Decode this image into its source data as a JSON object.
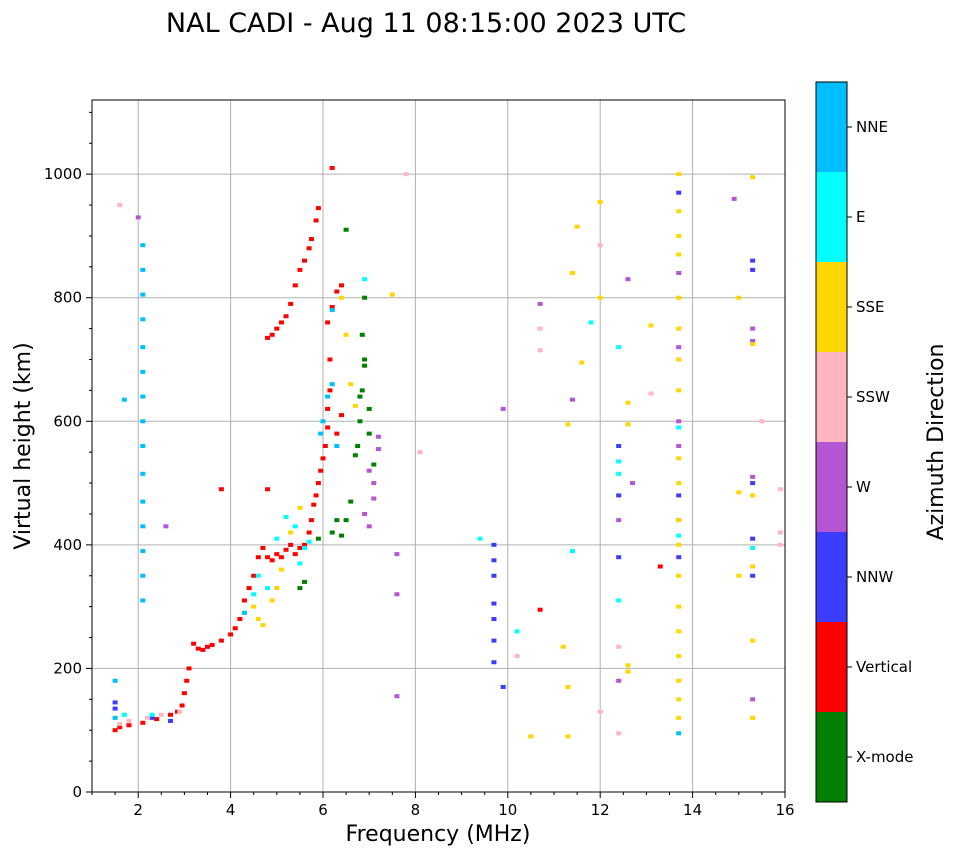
{
  "chart_data": {
    "type": "scatter",
    "title": "NAL CADI - Aug 11 08:15:00 2023 UTC",
    "xlabel": "Frequency (MHz)",
    "ylabel": "Virtual height (km)",
    "xlim": [
      1,
      16
    ],
    "ylim": [
      0,
      1120
    ],
    "grid": true,
    "x_ticks": [
      2,
      4,
      6,
      8,
      10,
      12,
      14,
      16
    ],
    "x_tick_labels": [
      "2",
      "4",
      "6",
      "8",
      "10",
      "12",
      "14",
      "16"
    ],
    "y_ticks": [
      0,
      200,
      400,
      600,
      800,
      1000
    ],
    "y_tick_labels": [
      "0",
      "200",
      "400",
      "600",
      "800",
      "1000"
    ],
    "colorbar": {
      "label": "Azimuth Direction",
      "categories": [
        {
          "name": "X-mode",
          "color": "#008000"
        },
        {
          "name": "Vertical",
          "color": "#ff0000"
        },
        {
          "name": "NNW",
          "color": "#3c3cff"
        },
        {
          "name": "W",
          "color": "#b455d4"
        },
        {
          "name": "SSW",
          "color": "#ffb6c1"
        },
        {
          "name": "SSE",
          "color": "#ffd700"
        },
        {
          "name": "E",
          "color": "#00ffff"
        },
        {
          "name": "NNE",
          "color": "#00bfff"
        }
      ]
    },
    "series": [
      {
        "name": "Vertical",
        "points": [
          [
            1.5,
            100
          ],
          [
            1.6,
            105
          ],
          [
            1.8,
            108
          ],
          [
            2.1,
            112
          ],
          [
            2.4,
            118
          ],
          [
            2.7,
            125
          ],
          [
            2.85,
            130
          ],
          [
            2.95,
            140
          ],
          [
            3.0,
            160
          ],
          [
            3.05,
            180
          ],
          [
            3.1,
            200
          ],
          [
            3.2,
            240
          ],
          [
            3.3,
            232
          ],
          [
            3.4,
            230
          ],
          [
            3.5,
            235
          ],
          [
            3.6,
            238
          ],
          [
            3.8,
            245
          ],
          [
            4.0,
            255
          ],
          [
            4.1,
            265
          ],
          [
            4.2,
            280
          ],
          [
            4.3,
            310
          ],
          [
            4.4,
            330
          ],
          [
            4.5,
            350
          ],
          [
            4.6,
            380
          ],
          [
            4.7,
            395
          ],
          [
            4.8,
            380
          ],
          [
            4.9,
            375
          ],
          [
            5.0,
            385
          ],
          [
            5.1,
            380
          ],
          [
            5.2,
            392
          ],
          [
            5.3,
            400
          ],
          [
            5.4,
            385
          ],
          [
            5.5,
            395
          ],
          [
            5.6,
            400
          ],
          [
            5.7,
            420
          ],
          [
            5.75,
            440
          ],
          [
            5.8,
            465
          ],
          [
            5.85,
            480
          ],
          [
            5.9,
            500
          ],
          [
            5.95,
            520
          ],
          [
            6.0,
            540
          ],
          [
            6.05,
            560
          ],
          [
            6.1,
            590
          ],
          [
            6.1,
            620
          ],
          [
            6.15,
            650
          ],
          [
            6.15,
            700
          ],
          [
            6.1,
            760
          ],
          [
            6.2,
            785
          ],
          [
            5.9,
            945
          ],
          [
            5.85,
            925
          ],
          [
            5.75,
            895
          ],
          [
            5.7,
            880
          ],
          [
            5.6,
            860
          ],
          [
            5.5,
            845
          ],
          [
            5.4,
            820
          ],
          [
            5.3,
            790
          ],
          [
            5.2,
            770
          ],
          [
            5.1,
            760
          ],
          [
            5.0,
            750
          ],
          [
            4.9,
            740
          ],
          [
            4.8,
            735
          ],
          [
            6.2,
            1010
          ],
          [
            6.4,
            820
          ],
          [
            6.3,
            810
          ],
          [
            4.8,
            490
          ],
          [
            3.8,
            490
          ],
          [
            13.3,
            365
          ],
          [
            10.7,
            295
          ],
          [
            6.4,
            610
          ],
          [
            6.3,
            580
          ]
        ]
      },
      {
        "name": "X-mode",
        "points": [
          [
            5.5,
            330
          ],
          [
            5.6,
            340
          ],
          [
            5.9,
            410
          ],
          [
            6.2,
            420
          ],
          [
            6.4,
            415
          ],
          [
            6.5,
            440
          ],
          [
            6.6,
            470
          ],
          [
            6.7,
            545
          ],
          [
            6.75,
            560
          ],
          [
            6.8,
            600
          ],
          [
            6.85,
            650
          ],
          [
            6.9,
            700
          ],
          [
            6.85,
            740
          ],
          [
            6.9,
            690
          ],
          [
            6.8,
            640
          ],
          [
            7.0,
            580
          ],
          [
            7.0,
            620
          ],
          [
            7.1,
            530
          ],
          [
            6.9,
            800
          ],
          [
            6.5,
            910
          ],
          [
            6.3,
            440
          ]
        ]
      },
      {
        "name": "NNW",
        "points": [
          [
            1.5,
            135
          ],
          [
            1.5,
            145
          ],
          [
            9.7,
            400
          ],
          [
            9.7,
            375
          ],
          [
            9.7,
            350
          ],
          [
            9.7,
            305
          ],
          [
            9.7,
            280
          ],
          [
            9.7,
            245
          ],
          [
            9.7,
            210
          ],
          [
            9.9,
            170
          ],
          [
            12.4,
            380
          ],
          [
            12.4,
            480
          ],
          [
            12.4,
            560
          ],
          [
            13.7,
            380
          ],
          [
            13.7,
            480
          ],
          [
            15.3,
            860
          ],
          [
            15.3,
            845
          ],
          [
            15.3,
            500
          ],
          [
            15.3,
            410
          ],
          [
            15.3,
            350
          ],
          [
            13.7,
            970
          ],
          [
            2.3,
            120
          ],
          [
            2.7,
            115
          ]
        ]
      },
      {
        "name": "W",
        "points": [
          [
            7.0,
            520
          ],
          [
            7.1,
            500
          ],
          [
            7.2,
            555
          ],
          [
            7.2,
            575
          ],
          [
            7.1,
            475
          ],
          [
            6.9,
            450
          ],
          [
            7.0,
            430
          ],
          [
            7.6,
            385
          ],
          [
            7.6,
            320
          ],
          [
            7.6,
            155
          ],
          [
            9.9,
            620
          ],
          [
            10.7,
            790
          ],
          [
            11.4,
            635
          ],
          [
            12.4,
            440
          ],
          [
            12.4,
            180
          ],
          [
            12.7,
            500
          ],
          [
            13.7,
            840
          ],
          [
            13.7,
            720
          ],
          [
            13.7,
            600
          ],
          [
            13.7,
            560
          ],
          [
            13.7,
            440
          ],
          [
            15.3,
            750
          ],
          [
            15.3,
            730
          ],
          [
            15.3,
            510
          ],
          [
            15.3,
            150
          ],
          [
            14.9,
            960
          ],
          [
            12.6,
            830
          ],
          [
            2.6,
            430
          ],
          [
            2.0,
            930
          ]
        ]
      },
      {
        "name": "SSW",
        "points": [
          [
            1.6,
            110
          ],
          [
            1.8,
            115
          ],
          [
            2.2,
            120
          ],
          [
            2.5,
            125
          ],
          [
            2.9,
            130
          ],
          [
            10.7,
            750
          ],
          [
            10.7,
            715
          ],
          [
            12.0,
            885
          ],
          [
            13.1,
            645
          ],
          [
            15.9,
            420
          ],
          [
            15.9,
            400
          ],
          [
            15.5,
            600
          ],
          [
            12.4,
            235
          ],
          [
            12.4,
            95
          ],
          [
            8.1,
            550
          ],
          [
            10.2,
            220
          ],
          [
            7.8,
            1000
          ],
          [
            1.6,
            950
          ],
          [
            15.9,
            490
          ],
          [
            12.0,
            130
          ]
        ]
      },
      {
        "name": "SSE",
        "points": [
          [
            4.5,
            300
          ],
          [
            4.6,
            280
          ],
          [
            4.7,
            270
          ],
          [
            4.9,
            310
          ],
          [
            5.0,
            330
          ],
          [
            5.1,
            360
          ],
          [
            5.3,
            420
          ],
          [
            5.5,
            460
          ],
          [
            6.5,
            740
          ],
          [
            6.6,
            660
          ],
          [
            6.7,
            625
          ],
          [
            6.4,
            800
          ],
          [
            7.5,
            805
          ],
          [
            11.3,
            595
          ],
          [
            11.4,
            840
          ],
          [
            11.5,
            915
          ],
          [
            11.6,
            695
          ],
          [
            11.2,
            235
          ],
          [
            11.3,
            170
          ],
          [
            12.0,
            955
          ],
          [
            12.0,
            800
          ],
          [
            12.6,
            630
          ],
          [
            12.6,
            595
          ],
          [
            12.6,
            205
          ],
          [
            12.6,
            195
          ],
          [
            13.7,
            1000
          ],
          [
            13.7,
            940
          ],
          [
            13.7,
            900
          ],
          [
            13.7,
            870
          ],
          [
            13.7,
            800
          ],
          [
            13.7,
            750
          ],
          [
            13.7,
            700
          ],
          [
            13.7,
            650
          ],
          [
            13.7,
            540
          ],
          [
            13.7,
            500
          ],
          [
            13.7,
            440
          ],
          [
            13.7,
            400
          ],
          [
            13.7,
            350
          ],
          [
            13.7,
            300
          ],
          [
            13.7,
            260
          ],
          [
            13.7,
            220
          ],
          [
            13.7,
            180
          ],
          [
            13.7,
            150
          ],
          [
            13.7,
            120
          ],
          [
            15.0,
            485
          ],
          [
            15.0,
            350
          ],
          [
            15.3,
            995
          ],
          [
            15.3,
            725
          ],
          [
            15.3,
            480
          ],
          [
            15.3,
            365
          ],
          [
            15.3,
            245
          ],
          [
            15.3,
            120
          ],
          [
            10.5,
            90
          ],
          [
            11.3,
            90
          ],
          [
            13.1,
            755
          ],
          [
            15.0,
            800
          ]
        ]
      },
      {
        "name": "E",
        "points": [
          [
            4.5,
            320
          ],
          [
            4.6,
            350
          ],
          [
            4.8,
            330
          ],
          [
            5.0,
            410
          ],
          [
            5.2,
            445
          ],
          [
            5.4,
            430
          ],
          [
            5.6,
            395
          ],
          [
            5.7,
            405
          ],
          [
            5.5,
            370
          ],
          [
            1.7,
            125
          ],
          [
            2.3,
            125
          ],
          [
            9.4,
            410
          ],
          [
            10.2,
            260
          ],
          [
            11.4,
            390
          ],
          [
            11.8,
            760
          ],
          [
            12.4,
            720
          ],
          [
            12.4,
            535
          ],
          [
            12.4,
            310
          ],
          [
            13.7,
            415
          ],
          [
            13.7,
            590
          ],
          [
            6.9,
            830
          ],
          [
            15.3,
            395
          ],
          [
            12.4,
            515
          ]
        ]
      },
      {
        "name": "NNE",
        "points": [
          [
            1.5,
            180
          ],
          [
            1.5,
            120
          ],
          [
            2.1,
            885
          ],
          [
            2.1,
            845
          ],
          [
            2.1,
            805
          ],
          [
            2.1,
            765
          ],
          [
            2.1,
            720
          ],
          [
            2.1,
            680
          ],
          [
            2.1,
            640
          ],
          [
            2.1,
            600
          ],
          [
            2.1,
            560
          ],
          [
            2.1,
            515
          ],
          [
            2.1,
            470
          ],
          [
            2.1,
            430
          ],
          [
            2.1,
            390
          ],
          [
            2.1,
            350
          ],
          [
            2.1,
            310
          ],
          [
            6.1,
            640
          ],
          [
            6.2,
            660
          ],
          [
            6.0,
            600
          ],
          [
            5.95,
            580
          ],
          [
            4.3,
            290
          ],
          [
            13.7,
            95
          ],
          [
            1.7,
            635
          ],
          [
            6.2,
            780
          ],
          [
            6.3,
            560
          ]
        ]
      }
    ]
  }
}
